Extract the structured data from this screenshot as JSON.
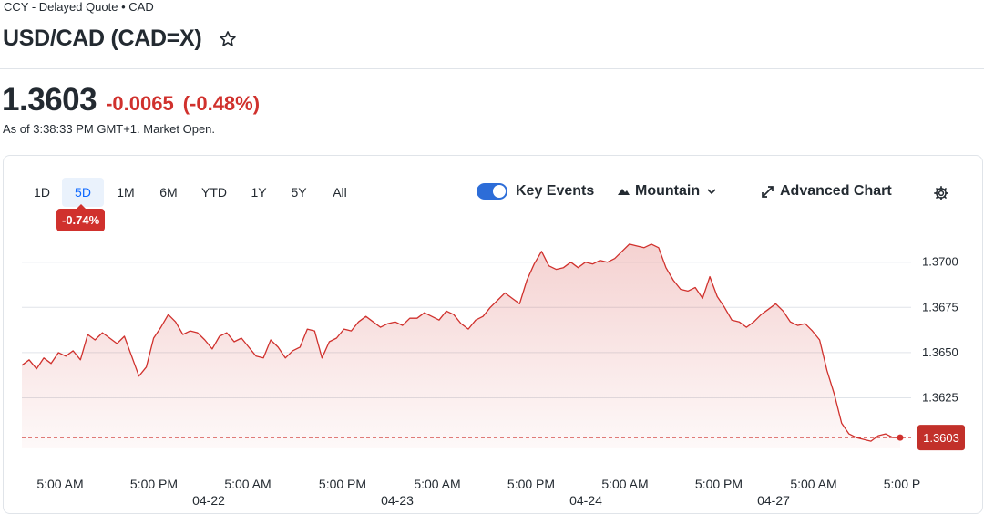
{
  "header": {
    "subhead": "CCY - Delayed Quote • CAD",
    "title": "USD/CAD (CAD=X)",
    "star_icon": "star-outline-icon"
  },
  "quote": {
    "price": "1.3603",
    "change": "-0.0065",
    "change_pct": "(-0.48%)",
    "as_of": "As of 3:38:33 PM GMT+1. Market Open.",
    "color_down": "#d0312d"
  },
  "toolbar": {
    "ranges": [
      "1D",
      "5D",
      "1M",
      "6M",
      "YTD",
      "1Y",
      "5Y",
      "All"
    ],
    "active_range": "5D",
    "range_change_badge": "-0.74%",
    "key_events_label": "Key Events",
    "key_events_on": true,
    "chart_type_label": "Mountain",
    "advanced_chart_label": "Advanced Chart",
    "icons": {
      "chart_type": "mountain-icon",
      "dropdown": "chevron-down-icon",
      "advanced": "expand-arrows-icon",
      "settings": "gear-icon"
    },
    "accent": "#2d6dd8"
  },
  "chart_data": {
    "type": "area",
    "ylim": [
      1.3597,
      1.3718
    ],
    "y_ticks": [
      "1.3700",
      "1.3675",
      "1.3650",
      "1.3625"
    ],
    "grid": true,
    "last_value_label": "1.3603",
    "previous_close_line": 1.3603,
    "line_color": "#d0312d",
    "x_time_labels": [
      "5:00 AM",
      "5:00 PM",
      "5:00 AM",
      "5:00 PM",
      "5:00 AM",
      "5:00 PM",
      "5:00 AM",
      "5:00 PM",
      "5:00 AM",
      "5:00 P"
    ],
    "x_date_labels": [
      "04-22",
      "04-23",
      "04-24",
      "04-27"
    ],
    "series": [
      {
        "values": [
          1.3643,
          1.3646,
          1.3641,
          1.3647,
          1.3644,
          1.365,
          1.3648,
          1.3651,
          1.3646,
          1.366,
          1.3657,
          1.3661,
          1.3658,
          1.3655,
          1.3659,
          1.3648,
          1.3637,
          1.3642,
          1.3658,
          1.3664,
          1.3671,
          1.3667,
          1.366,
          1.3662,
          1.3661,
          1.3657,
          1.3652,
          1.3659,
          1.3661,
          1.3656,
          1.3658,
          1.3653,
          1.3648,
          1.3647,
          1.3657,
          1.3653,
          1.3647,
          1.3651,
          1.3653,
          1.3663,
          1.3662,
          1.3647,
          1.3656,
          1.3658,
          1.3663,
          1.3662,
          1.3667,
          1.367,
          1.3667,
          1.3664,
          1.3666,
          1.3667,
          1.3665,
          1.3669,
          1.3669,
          1.3672,
          1.367,
          1.3668,
          1.3673,
          1.3671,
          1.3666,
          1.3663,
          1.3668,
          1.367,
          1.3675,
          1.3679,
          1.3683,
          1.368,
          1.3677,
          1.369,
          1.3699,
          1.3706,
          1.3698,
          1.3696,
          1.3697,
          1.37,
          1.3697,
          1.37,
          1.3699,
          1.3701,
          1.37,
          1.3702,
          1.3706,
          1.371,
          1.3709,
          1.3708,
          1.371,
          1.3708,
          1.3697,
          1.369,
          1.3685,
          1.3684,
          1.3686,
          1.368,
          1.3692,
          1.3681,
          1.3675,
          1.3668,
          1.3667,
          1.3664,
          1.3667,
          1.3671,
          1.3674,
          1.3677,
          1.3673,
          1.3667,
          1.3665,
          1.3666,
          1.3662,
          1.3657,
          1.364,
          1.3627,
          1.3611,
          1.3605,
          1.3603,
          1.3602,
          1.3601,
          1.3604,
          1.3605,
          1.3603,
          1.3603
        ]
      }
    ]
  }
}
